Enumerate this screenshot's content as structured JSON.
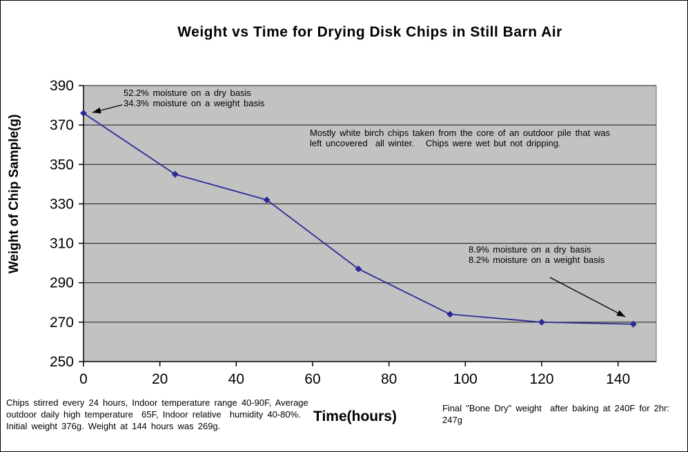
{
  "colors": {
    "plot_bg": "#c2c2c2",
    "plot_border": "#707070",
    "grid": "#1a1a1a",
    "axis": "#000000",
    "series": "#2b2b96",
    "text": "#000000",
    "arrow": "#000000"
  },
  "chart_data": {
    "type": "line",
    "title": "Weight vs Time for Drying Disk Chips in Still Barn Air",
    "xlabel": "Time(hours)",
    "ylabel": "Weight of Chip Sample(g)",
    "x": [
      0,
      24,
      48,
      72,
      96,
      120,
      144
    ],
    "y": [
      376,
      345,
      332,
      297,
      274,
      270,
      269
    ],
    "xlim": [
      0,
      150
    ],
    "ylim": [
      250,
      390
    ],
    "xticks": [
      0,
      20,
      40,
      60,
      80,
      100,
      120,
      140
    ],
    "yticks": [
      250,
      270,
      290,
      310,
      330,
      350,
      370,
      390
    ],
    "grid": "horizontal-only",
    "legend": "none",
    "marker": "diamond",
    "annotations": [
      {
        "id": "start-moisture",
        "text": "52.2% moisture on a dry basis\n34.3% moisture on a weight basis",
        "arrow": {
          "from": [
            176,
            151
          ],
          "to": [
            133,
            162
          ]
        }
      },
      {
        "id": "chips-note",
        "text": "Mostly white birch chips taken from the core of an outdoor pile that was\nleft uncovered  all winter.   Chips were wet but not dripping."
      },
      {
        "id": "end-moisture",
        "text": "8.9% moisture on a dry basis\n8.2% moisture on a weight basis",
        "arrow": {
          "from": [
            796,
            401
          ],
          "to": [
            905,
            458
          ]
        }
      }
    ]
  },
  "notes": {
    "bottom_left": "Chips stirred every 24 hours, Indoor temperature range 40-90F, Average\noutdoor daily high temperature  65F, Indoor relative  humidity 40-80%.\nInitial weight 376g. Weight at 144 hours was 269g.",
    "bottom_right": "Final \"Bone Dry\" weight  after baking at 240F for 2hr:\n247g"
  }
}
